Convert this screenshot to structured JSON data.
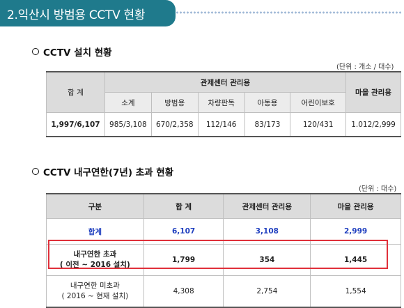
{
  "header": {
    "title": "2.익산시 방범용 CCTV 현황"
  },
  "section1": {
    "title": "CCTV 설치 현황",
    "unit": "(단위 : 개소 / 대수)",
    "table": {
      "total_header": "합 계",
      "group_header": "관제센터 관리용",
      "village_header": "마을 관리용",
      "sub_headers": [
        "소계",
        "방범용",
        "차량판독",
        "아동용",
        "어린이보호"
      ],
      "row": {
        "total": "1,997/6,107",
        "values": [
          "985/3,108",
          "670/2,358",
          "112/146",
          "83/173",
          "120/431"
        ],
        "village": "1.012/2,999"
      }
    }
  },
  "section2": {
    "title": "CCTV 내구연한(7년) 초과 현황",
    "unit": "(단위 : 대수)",
    "table": {
      "headers": [
        "구분",
        "합 계",
        "관제센터 관리용",
        "마을 관리용"
      ],
      "sum_row": [
        "합계",
        "6,107",
        "3,108",
        "2,999"
      ],
      "over_row": {
        "label_line1": "내구연한 초과",
        "label_line2": "( 이전 ~ 2016 설치)",
        "values": [
          "1,799",
          "354",
          "1,445"
        ]
      },
      "under_row": {
        "label_line1": "내구연한 미초과",
        "label_line2": "( 2016 ~ 현재 설치)",
        "values": [
          "4,308",
          "2,754",
          "1,554"
        ]
      }
    }
  }
}
